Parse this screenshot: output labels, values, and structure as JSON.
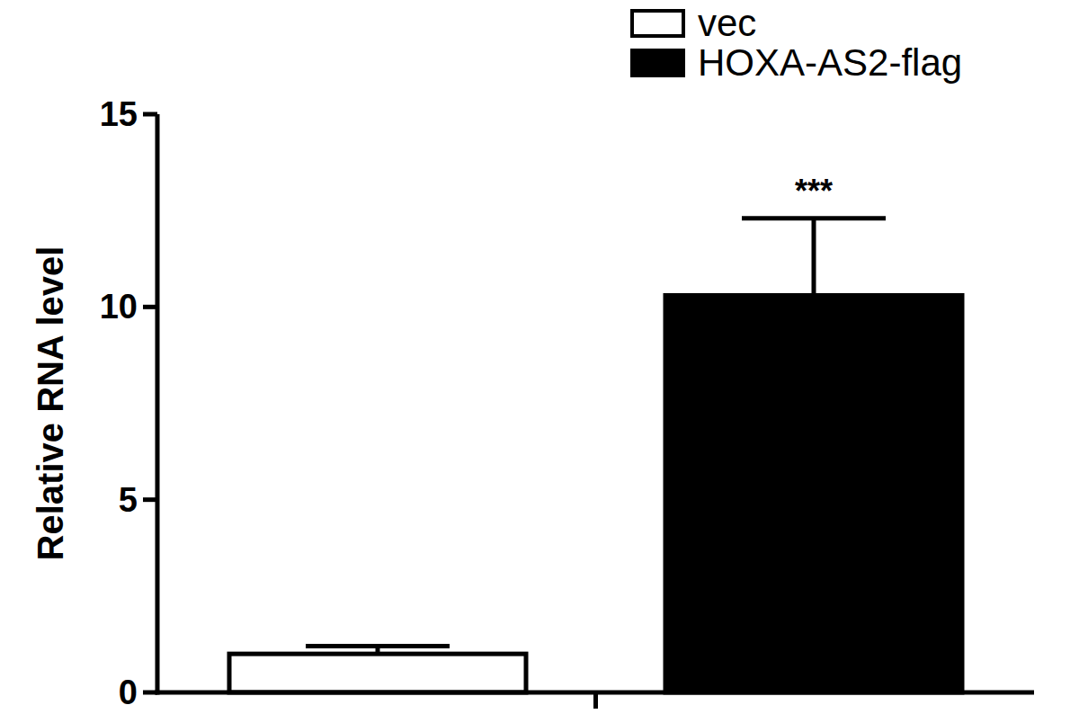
{
  "chart_data": {
    "type": "bar",
    "y_label": "Relative RNA level",
    "categories": [
      null
    ],
    "series": [
      {
        "name": "vec",
        "color": "#ffffff",
        "values": [
          1.0
        ],
        "errors": [
          0.2
        ]
      },
      {
        "name": "HOXA-AS2-flag",
        "color": "#000000",
        "values": [
          10.3
        ],
        "errors": [
          2.0
        ],
        "annotation": "***"
      }
    ],
    "ylim": [
      0,
      15
    ],
    "yticks": [
      0,
      5,
      10,
      15
    ],
    "grid": false,
    "legend": "top-right"
  }
}
